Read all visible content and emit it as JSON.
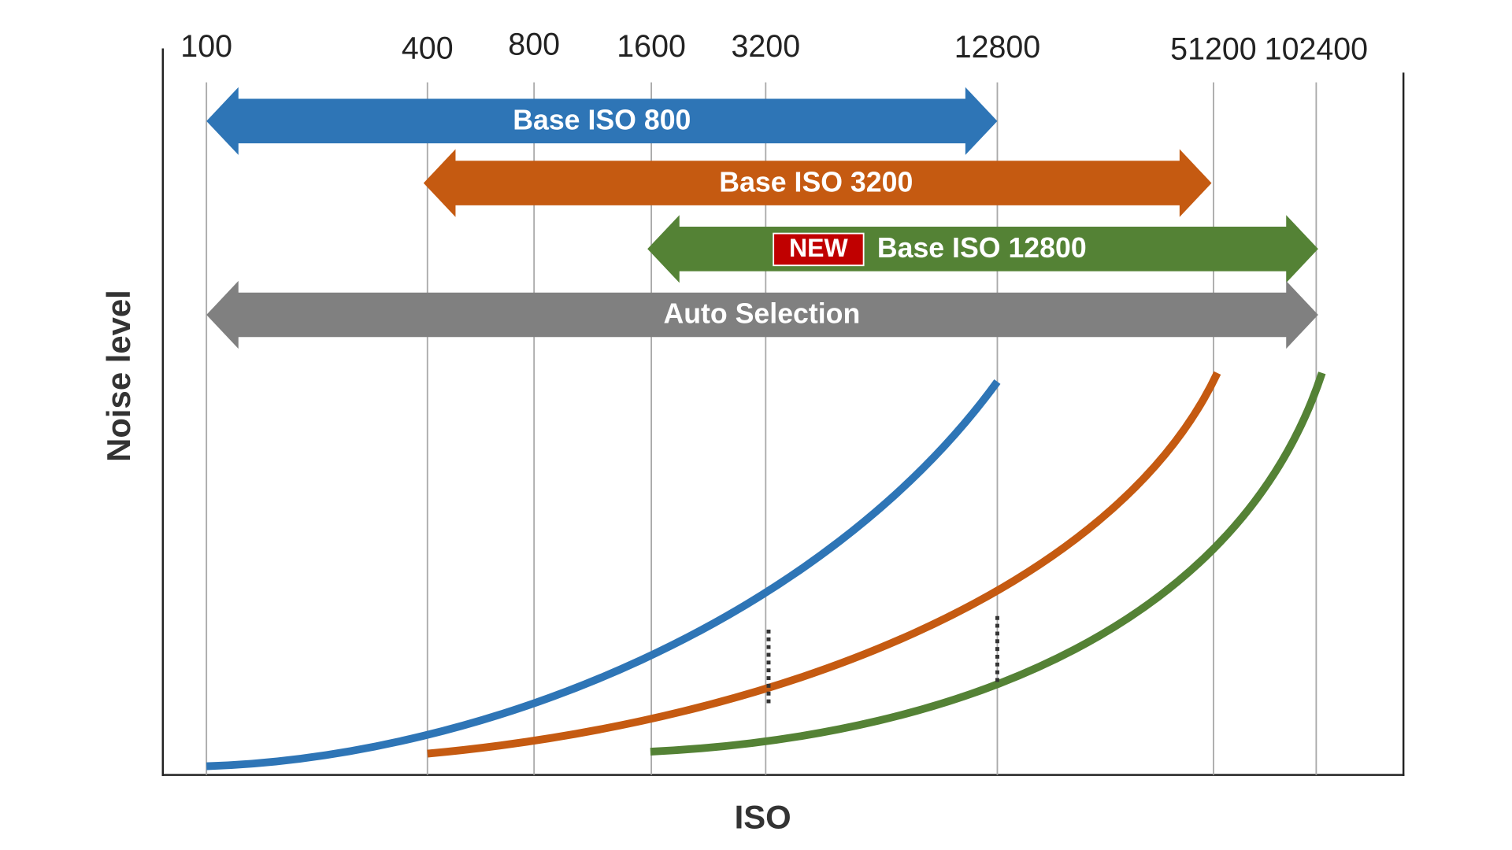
{
  "axis": {
    "x_label": "ISO",
    "y_label": "Noise level"
  },
  "iso_ticks": [
    "100",
    "400",
    "800",
    "1600",
    "3200",
    "12800",
    "51200",
    "102400"
  ],
  "arrows": [
    {
      "label": "Base ISO 800"
    },
    {
      "label": "Base ISO 3200"
    },
    {
      "label": "Base ISO 12800",
      "badge": "NEW"
    },
    {
      "label": "Auto Selection"
    }
  ]
}
